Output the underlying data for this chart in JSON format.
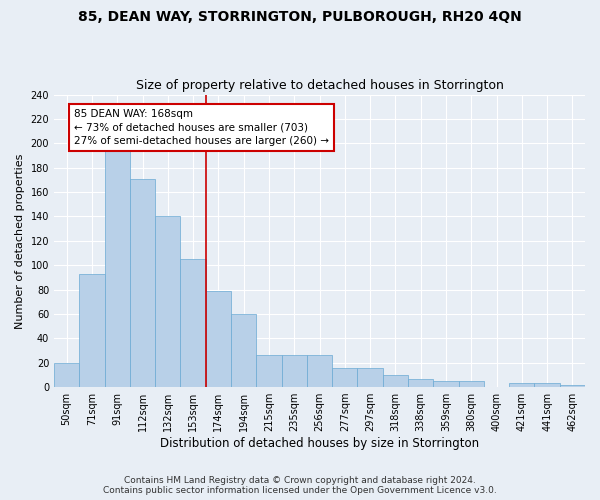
{
  "title": "85, DEAN WAY, STORRINGTON, PULBOROUGH, RH20 4QN",
  "subtitle": "Size of property relative to detached houses in Storrington",
  "xlabel": "Distribution of detached houses by size in Storrington",
  "ylabel": "Number of detached properties",
  "categories": [
    "50sqm",
    "71sqm",
    "91sqm",
    "112sqm",
    "132sqm",
    "153sqm",
    "174sqm",
    "194sqm",
    "215sqm",
    "235sqm",
    "256sqm",
    "277sqm",
    "297sqm",
    "318sqm",
    "338sqm",
    "359sqm",
    "380sqm",
    "400sqm",
    "421sqm",
    "441sqm",
    "462sqm"
  ],
  "values": [
    20,
    93,
    198,
    171,
    140,
    105,
    79,
    60,
    26,
    26,
    26,
    16,
    16,
    10,
    7,
    5,
    5,
    0,
    3,
    3,
    2
  ],
  "bar_color": "#b8d0e8",
  "bar_edge_color": "#6aaad4",
  "property_line_x": 5.5,
  "annotation_text": "85 DEAN WAY: 168sqm\n← 73% of detached houses are smaller (703)\n27% of semi-detached houses are larger (260) →",
  "annotation_box_color": "#ffffff",
  "annotation_box_edge": "#cc0000",
  "line_color": "#cc0000",
  "ylim": [
    0,
    240
  ],
  "yticks": [
    0,
    20,
    40,
    60,
    80,
    100,
    120,
    140,
    160,
    180,
    200,
    220,
    240
  ],
  "bg_color": "#e8eef5",
  "plot_bg_color": "#e8eef5",
  "footer_line1": "Contains HM Land Registry data © Crown copyright and database right 2024.",
  "footer_line2": "Contains public sector information licensed under the Open Government Licence v3.0.",
  "title_fontsize": 10,
  "subtitle_fontsize": 9,
  "xlabel_fontsize": 8.5,
  "ylabel_fontsize": 8,
  "tick_fontsize": 7,
  "annotation_fontsize": 7.5,
  "footer_fontsize": 6.5
}
